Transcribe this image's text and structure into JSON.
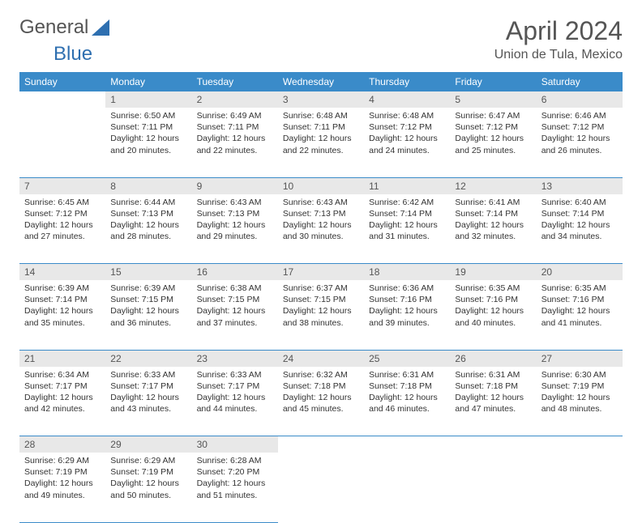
{
  "brand": {
    "part1": "General",
    "part2": "Blue"
  },
  "title": "April 2024",
  "location": "Union de Tula, Mexico",
  "colors": {
    "header_bg": "#3a8bc9",
    "header_fg": "#ffffff",
    "daynum_bg": "#e8e8e8",
    "text": "#333333",
    "rule": "#3a8bc9",
    "logo_blue": "#2e6fb0"
  },
  "weekdays": [
    "Sunday",
    "Monday",
    "Tuesday",
    "Wednesday",
    "Thursday",
    "Friday",
    "Saturday"
  ],
  "weeks": [
    {
      "nums": [
        "",
        "1",
        "2",
        "3",
        "4",
        "5",
        "6"
      ],
      "cells": [
        null,
        {
          "sr": "6:50 AM",
          "ss": "7:11 PM",
          "dl": "12 hours and 20 minutes."
        },
        {
          "sr": "6:49 AM",
          "ss": "7:11 PM",
          "dl": "12 hours and 22 minutes."
        },
        {
          "sr": "6:48 AM",
          "ss": "7:11 PM",
          "dl": "12 hours and 22 minutes."
        },
        {
          "sr": "6:48 AM",
          "ss": "7:12 PM",
          "dl": "12 hours and 24 minutes."
        },
        {
          "sr": "6:47 AM",
          "ss": "7:12 PM",
          "dl": "12 hours and 25 minutes."
        },
        {
          "sr": "6:46 AM",
          "ss": "7:12 PM",
          "dl": "12 hours and 26 minutes."
        }
      ]
    },
    {
      "nums": [
        "7",
        "8",
        "9",
        "10",
        "11",
        "12",
        "13"
      ],
      "cells": [
        {
          "sr": "6:45 AM",
          "ss": "7:12 PM",
          "dl": "12 hours and 27 minutes."
        },
        {
          "sr": "6:44 AM",
          "ss": "7:13 PM",
          "dl": "12 hours and 28 minutes."
        },
        {
          "sr": "6:43 AM",
          "ss": "7:13 PM",
          "dl": "12 hours and 29 minutes."
        },
        {
          "sr": "6:43 AM",
          "ss": "7:13 PM",
          "dl": "12 hours and 30 minutes."
        },
        {
          "sr": "6:42 AM",
          "ss": "7:14 PM",
          "dl": "12 hours and 31 minutes."
        },
        {
          "sr": "6:41 AM",
          "ss": "7:14 PM",
          "dl": "12 hours and 32 minutes."
        },
        {
          "sr": "6:40 AM",
          "ss": "7:14 PM",
          "dl": "12 hours and 34 minutes."
        }
      ]
    },
    {
      "nums": [
        "14",
        "15",
        "16",
        "17",
        "18",
        "19",
        "20"
      ],
      "cells": [
        {
          "sr": "6:39 AM",
          "ss": "7:14 PM",
          "dl": "12 hours and 35 minutes."
        },
        {
          "sr": "6:39 AM",
          "ss": "7:15 PM",
          "dl": "12 hours and 36 minutes."
        },
        {
          "sr": "6:38 AM",
          "ss": "7:15 PM",
          "dl": "12 hours and 37 minutes."
        },
        {
          "sr": "6:37 AM",
          "ss": "7:15 PM",
          "dl": "12 hours and 38 minutes."
        },
        {
          "sr": "6:36 AM",
          "ss": "7:16 PM",
          "dl": "12 hours and 39 minutes."
        },
        {
          "sr": "6:35 AM",
          "ss": "7:16 PM",
          "dl": "12 hours and 40 minutes."
        },
        {
          "sr": "6:35 AM",
          "ss": "7:16 PM",
          "dl": "12 hours and 41 minutes."
        }
      ]
    },
    {
      "nums": [
        "21",
        "22",
        "23",
        "24",
        "25",
        "26",
        "27"
      ],
      "cells": [
        {
          "sr": "6:34 AM",
          "ss": "7:17 PM",
          "dl": "12 hours and 42 minutes."
        },
        {
          "sr": "6:33 AM",
          "ss": "7:17 PM",
          "dl": "12 hours and 43 minutes."
        },
        {
          "sr": "6:33 AM",
          "ss": "7:17 PM",
          "dl": "12 hours and 44 minutes."
        },
        {
          "sr": "6:32 AM",
          "ss": "7:18 PM",
          "dl": "12 hours and 45 minutes."
        },
        {
          "sr": "6:31 AM",
          "ss": "7:18 PM",
          "dl": "12 hours and 46 minutes."
        },
        {
          "sr": "6:31 AM",
          "ss": "7:18 PM",
          "dl": "12 hours and 47 minutes."
        },
        {
          "sr": "6:30 AM",
          "ss": "7:19 PM",
          "dl": "12 hours and 48 minutes."
        }
      ]
    },
    {
      "nums": [
        "28",
        "29",
        "30",
        "",
        "",
        "",
        ""
      ],
      "cells": [
        {
          "sr": "6:29 AM",
          "ss": "7:19 PM",
          "dl": "12 hours and 49 minutes."
        },
        {
          "sr": "6:29 AM",
          "ss": "7:19 PM",
          "dl": "12 hours and 50 minutes."
        },
        {
          "sr": "6:28 AM",
          "ss": "7:20 PM",
          "dl": "12 hours and 51 minutes."
        },
        null,
        null,
        null,
        null
      ]
    }
  ],
  "labels": {
    "sunrise": "Sunrise:",
    "sunset": "Sunset:",
    "daylight": "Daylight:"
  }
}
